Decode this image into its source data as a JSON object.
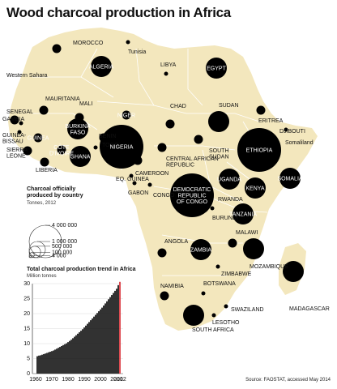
{
  "title": "Wood charcoal production in Africa",
  "source": "Source: FAOSTAT, accessed May 2014",
  "size_legend": {
    "title": "Charcoal officially produced by country",
    "unit": "Tonnes, 2012",
    "values": [
      "4 000 000",
      "1 000 000",
      "500 000",
      "100 000",
      "4 000"
    ],
    "amounts": [
      4000000,
      1000000,
      500000,
      100000,
      4000
    ]
  },
  "colors": {
    "land": "#f3e7bd",
    "bubble": "#000000",
    "highlight": "#d62028",
    "bar": "#000000"
  },
  "countries": [
    {
      "name": "MOROCCO",
      "lines": [
        "MOROCCO"
      ],
      "inside": false,
      "size": "small"
    },
    {
      "name": "Western Sahara",
      "lines": [
        "Western Sahara"
      ],
      "inside": false,
      "size": "none"
    },
    {
      "name": "Tunisia",
      "lines": [
        "Tunisia"
      ],
      "inside": false,
      "size": "tiny"
    },
    {
      "name": "ALGERIA",
      "lines": [
        "ALGERIA"
      ],
      "inside": true,
      "size": "medium"
    },
    {
      "name": "LIBYA",
      "lines": [
        "LIBYA"
      ],
      "inside": false,
      "size": "tiny"
    },
    {
      "name": "EGYPT",
      "lines": [
        "EGYPT"
      ],
      "inside": true,
      "size": "medium"
    },
    {
      "name": "MAURITANIA",
      "lines": [
        "MAURITANIA"
      ],
      "inside": false,
      "size": "small"
    },
    {
      "name": "MALI",
      "lines": [
        "MALI"
      ],
      "inside": false,
      "size": "small"
    },
    {
      "name": "SENEGAL",
      "lines": [
        "SENEGAL"
      ],
      "inside": false,
      "size": "small"
    },
    {
      "name": "GAMBIA",
      "lines": [
        "GAMBIA"
      ],
      "inside": false,
      "size": "tiny"
    },
    {
      "name": "GUINEA-BISSAU",
      "lines": [
        "GUINEA-",
        "BISSAU"
      ],
      "inside": false,
      "size": "tiny"
    },
    {
      "name": "GUINEA",
      "lines": [
        "GUINEA"
      ],
      "inside": true,
      "size": "small"
    },
    {
      "name": "SIERRA LEONE",
      "lines": [
        "SIERRA",
        "LEONE"
      ],
      "inside": false,
      "size": "small"
    },
    {
      "name": "LIBERIA",
      "lines": [
        "LIBERIA"
      ],
      "inside": false,
      "size": "small"
    },
    {
      "name": "CÔTE D'IVOIRE",
      "lines": [
        "CÔTE",
        "D'IVOIRE"
      ],
      "inside": true,
      "size": "small"
    },
    {
      "name": "BURKINA FASO",
      "lines": [
        "BURKINA",
        "FASO"
      ],
      "inside": true,
      "size": "medium"
    },
    {
      "name": "GHANA",
      "lines": [
        "GHANA"
      ],
      "inside": true,
      "size": "medium"
    },
    {
      "name": "TOGO",
      "lines": [
        "TOGO"
      ],
      "inside": false,
      "size": "tiny"
    },
    {
      "name": "BENIN",
      "lines": [
        "BENIN"
      ],
      "inside": false,
      "size": "small"
    },
    {
      "name": "NIGER",
      "lines": [
        "NIGER"
      ],
      "inside": true,
      "size": "small"
    },
    {
      "name": "NIGERIA",
      "lines": [
        "NIGERIA"
      ],
      "inside": true,
      "size": "large"
    },
    {
      "name": "CHAD",
      "lines": [
        "CHAD"
      ],
      "inside": false,
      "size": "small"
    },
    {
      "name": "SUDAN",
      "lines": [
        "SUDAN"
      ],
      "inside": false,
      "size": "medium"
    },
    {
      "name": "ERITREA",
      "lines": [
        "ERITREA"
      ],
      "inside": false,
      "size": "small"
    },
    {
      "name": "DJIBOUTI",
      "lines": [
        "DJIBOUTI"
      ],
      "inside": false,
      "size": "tiny"
    },
    {
      "name": "Somaliland",
      "lines": [
        "Somaliland"
      ],
      "inside": false,
      "size": "none"
    },
    {
      "name": "ETHIOPIA",
      "lines": [
        "ETHIOPIA"
      ],
      "inside": true,
      "size": "large"
    },
    {
      "name": "SOUTH SUDAN",
      "lines": [
        "SOUTH",
        "SUDAN"
      ],
      "inside": false,
      "size": "small"
    },
    {
      "name": "CENTRAL AFRICAN REPUBLIC",
      "lines": [
        "CENTRAL AFRICAN",
        "REPUBLIC"
      ],
      "inside": false,
      "size": "small"
    },
    {
      "name": "CAMEROON",
      "lines": [
        "CAMEROON"
      ],
      "inside": false,
      "size": "small"
    },
    {
      "name": "EQ. GUINEA",
      "lines": [
        "EQ. GUINEA"
      ],
      "inside": false,
      "size": "tiny"
    },
    {
      "name": "GABON",
      "lines": [
        "GABON"
      ],
      "inside": false,
      "size": "tiny"
    },
    {
      "name": "CONGO",
      "lines": [
        "CONGO"
      ],
      "inside": false,
      "size": "tiny"
    },
    {
      "name": "DEMOCRATIC REPUBLIC OF CONGO",
      "lines": [
        "DEMOCRATIC",
        "REPUBLIC",
        "OF CONGO"
      ],
      "inside": true,
      "size": "large"
    },
    {
      "name": "UGANDA",
      "lines": [
        "UGANDA"
      ],
      "inside": true,
      "size": "medium"
    },
    {
      "name": "KENYA",
      "lines": [
        "KENYA"
      ],
      "inside": true,
      "size": "medium"
    },
    {
      "name": "SOMALIA",
      "lines": [
        "SOMALIA"
      ],
      "inside": true,
      "size": "medium"
    },
    {
      "name": "RWANDA",
      "lines": [
        "RWANDA"
      ],
      "inside": false,
      "size": "tiny"
    },
    {
      "name": "BURUNDI",
      "lines": [
        "BURUNDI"
      ],
      "inside": false,
      "size": "tiny"
    },
    {
      "name": "TANZANIA",
      "lines": [
        "TANZANIA"
      ],
      "inside": true,
      "size": "medium"
    },
    {
      "name": "ANGOLA",
      "lines": [
        "ANGOLA"
      ],
      "inside": false,
      "size": "small"
    },
    {
      "name": "ZAMBIA",
      "lines": [
        "ZAMBIA"
      ],
      "inside": true,
      "size": "medium"
    },
    {
      "name": "MALAWI",
      "lines": [
        "MALAWI"
      ],
      "inside": false,
      "size": "small"
    },
    {
      "name": "MOZAMBIQUE",
      "lines": [
        "MOZAMBIQUE"
      ],
      "inside": false,
      "size": "medium"
    },
    {
      "name": "ZIMBABWE",
      "lines": [
        "ZIMBABWE"
      ],
      "inside": false,
      "size": "tiny"
    },
    {
      "name": "MADAGASCAR",
      "lines": [
        "MADAGASCAR"
      ],
      "inside": false,
      "size": "medium"
    },
    {
      "name": "NAMIBIA",
      "lines": [
        "NAMIBIA"
      ],
      "inside": false,
      "size": "small"
    },
    {
      "name": "BOTSWANA",
      "lines": [
        "BOTSWANA"
      ],
      "inside": false,
      "size": "tiny"
    },
    {
      "name": "SWAZILAND",
      "lines": [
        "SWAZILAND"
      ],
      "inside": false,
      "size": "tiny"
    },
    {
      "name": "LESOTHO",
      "lines": [
        "LESOTHO"
      ],
      "inside": false,
      "size": "tiny"
    },
    {
      "name": "SOUTH AFRICA",
      "lines": [
        "SOUTH AFRICA"
      ],
      "inside": false,
      "size": "medium"
    }
  ],
  "chart_data": {
    "type": "bar",
    "title": "Total charcoal production trend in Africa",
    "ylabel": "Million tonnes",
    "ylim": [
      0,
      30
    ],
    "yticks": [
      0,
      5,
      10,
      15,
      20,
      25,
      30
    ],
    "xticks": [
      "1960",
      "1970",
      "1980",
      "1990",
      "2000",
      "2010",
      "2012"
    ],
    "highlight_label": "2012",
    "x": [
      1961,
      1962,
      1963,
      1964,
      1965,
      1966,
      1967,
      1968,
      1969,
      1970,
      1971,
      1972,
      1973,
      1974,
      1975,
      1976,
      1977,
      1978,
      1979,
      1980,
      1981,
      1982,
      1983,
      1984,
      1985,
      1986,
      1987,
      1988,
      1989,
      1990,
      1991,
      1992,
      1993,
      1994,
      1995,
      1996,
      1997,
      1998,
      1999,
      2000,
      2001,
      2002,
      2003,
      2004,
      2005,
      2006,
      2007,
      2008,
      2009,
      2010,
      2011,
      2012
    ],
    "values": [
      5.8,
      6.0,
      6.1,
      6.3,
      6.5,
      6.7,
      6.9,
      7.1,
      7.3,
      7.5,
      7.7,
      8.0,
      8.3,
      8.6,
      8.9,
      9.2,
      9.5,
      9.8,
      10.1,
      10.5,
      10.9,
      11.3,
      11.8,
      12.3,
      12.8,
      13.3,
      13.8,
      14.3,
      14.8,
      15.4,
      16.0,
      16.6,
      17.2,
      17.8,
      18.4,
      19.0,
      19.6,
      20.2,
      20.8,
      21.4,
      22.0,
      22.7,
      23.4,
      24.1,
      24.8,
      25.5,
      26.2,
      26.9,
      27.6,
      28.3,
      29.5,
      30.6
    ]
  }
}
